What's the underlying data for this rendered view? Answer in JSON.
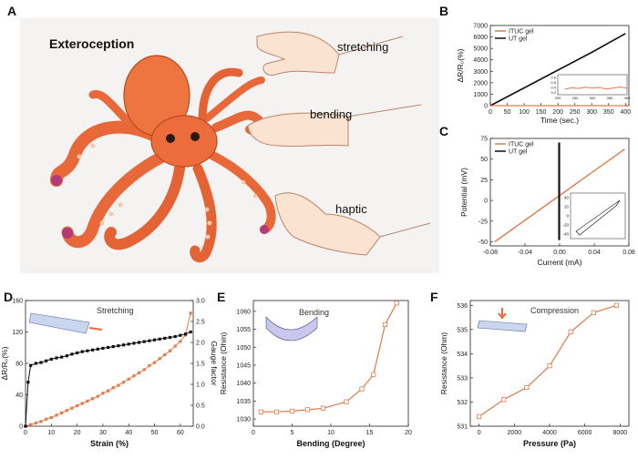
{
  "panels": {
    "A": {
      "label": "A",
      "title": "Exteroception",
      "words": [
        "stretching",
        "bending",
        "haptic"
      ]
    },
    "B": {
      "label": "B"
    },
    "C": {
      "label": "C"
    },
    "D": {
      "label": "D"
    },
    "E": {
      "label": "E"
    },
    "F": {
      "label": "F"
    }
  },
  "colors": {
    "orange": "#e07a4a",
    "black": "#111111",
    "skin": "#fbe3d2",
    "octopus": "#e8683a"
  },
  "chart_data": [
    {
      "id": "B",
      "type": "line",
      "xlabel": "Time (sec.)",
      "ylabel": "ΔR/R₀(%)",
      "xlim": [
        0,
        410
      ],
      "ylim": [
        0,
        7000
      ],
      "xticks": [
        "0",
        "50",
        "100",
        "150",
        "200",
        "250",
        "300",
        "350",
        "400"
      ],
      "yticks": [
        "0",
        "1000",
        "2000",
        "3000",
        "4000",
        "5000",
        "6000",
        "7000"
      ],
      "series": [
        {
          "name": "ITUC gel",
          "color": "#e07a4a",
          "x": [
            0,
            400
          ],
          "y": [
            0,
            0
          ]
        },
        {
          "name": "UT gel",
          "color": "#111111",
          "x": [
            0,
            100,
            200,
            300,
            400
          ],
          "y": [
            0,
            1550,
            3100,
            4650,
            6300
          ]
        }
      ],
      "inset": {
        "yticks": [
          "0.2",
          "0.4",
          "0.6",
          "0.8"
        ],
        "xticks": [
          "200",
          "250",
          "300",
          "350",
          "400"
        ],
        "x": [
          220,
          240,
          260,
          280,
          300,
          320,
          340,
          360,
          380,
          400
        ],
        "y": [
          0.32,
          0.38,
          0.35,
          0.4,
          0.36,
          0.39,
          0.33,
          0.37,
          0.41,
          0.36
        ]
      }
    },
    {
      "id": "C",
      "type": "line",
      "xlabel": "Current (mA)",
      "ylabel": "Potential (mV)",
      "xlim": [
        -0.08,
        0.08
      ],
      "ylim": [
        -55,
        75
      ],
      "xticks": [
        "-0.08",
        "-0.04",
        "0.00",
        "0.04",
        "0.08"
      ],
      "yticks": [
        "-50",
        "-25",
        "0",
        "25",
        "50",
        "75"
      ],
      "series": [
        {
          "name": "ITUC gel",
          "color": "#e07a4a",
          "x": [
            -0.075,
            0.075
          ],
          "y": [
            -50,
            62
          ]
        },
        {
          "name": "UT gel",
          "color": "#111111",
          "x": [
            -0.0005,
            -0.0005
          ],
          "y": [
            -48,
            70
          ]
        }
      ],
      "inset": {
        "yticks": [
          "40",
          "20",
          "0",
          "-20",
          "-40"
        ]
      }
    },
    {
      "id": "D",
      "type": "scatter",
      "title": "Stretching",
      "xlabel": "Strain (%)",
      "ylabel": "ΔR/R₀(%)",
      "y2label": "Gauge factor",
      "xlim": [
        0,
        65
      ],
      "ylim": [
        0,
        160
      ],
      "y2lim": [
        0,
        3.0
      ],
      "xticks": [
        "0",
        "10",
        "20",
        "30",
        "40",
        "50",
        "60"
      ],
      "yticks": [
        "0",
        "40",
        "80",
        "120",
        "160"
      ],
      "y2ticks": [
        "0.0",
        "0.5",
        "1.0",
        "1.5",
        "2.0",
        "2.5",
        "3.0"
      ],
      "series": [
        {
          "name": "ΔR/R₀",
          "color": "#e07a4a",
          "axis": "left",
          "x": [
            0,
            2,
            4,
            6,
            8,
            10,
            12,
            14,
            16,
            18,
            20,
            22,
            24,
            26,
            28,
            30,
            32,
            34,
            36,
            38,
            40,
            42,
            44,
            46,
            48,
            50,
            52,
            54,
            56,
            58,
            60,
            62,
            64
          ],
          "y": [
            0,
            2,
            4,
            6,
            9,
            11,
            14,
            17,
            20,
            23,
            26,
            29,
            32,
            35,
            38,
            42,
            45,
            49,
            52,
            56,
            60,
            64,
            68,
            72,
            77,
            81,
            86,
            91,
            96,
            102,
            108,
            116,
            144
          ]
        },
        {
          "name": "Gauge factor",
          "color": "#111111",
          "axis": "right",
          "x": [
            0,
            1,
            2,
            4,
            6,
            8,
            10,
            12,
            14,
            16,
            18,
            20,
            22,
            24,
            26,
            28,
            30,
            32,
            34,
            36,
            38,
            40,
            42,
            44,
            46,
            48,
            50,
            52,
            54,
            56,
            58,
            60,
            62,
            64
          ],
          "y": [
            0,
            1.05,
            1.45,
            1.5,
            1.52,
            1.56,
            1.6,
            1.63,
            1.65,
            1.68,
            1.72,
            1.75,
            1.78,
            1.8,
            1.82,
            1.84,
            1.86,
            1.88,
            1.9,
            1.92,
            1.94,
            1.96,
            1.98,
            2.0,
            2.02,
            2.04,
            2.06,
            2.08,
            2.1,
            2.12,
            2.14,
            2.17,
            2.2,
            2.25
          ]
        }
      ]
    },
    {
      "id": "E",
      "type": "line",
      "title": "Bending",
      "xlabel": "Bending (Degree)",
      "ylabel": "Resistance (Ohm)",
      "xlim": [
        0,
        20
      ],
      "ylim": [
        1028,
        1063
      ],
      "xticks": [
        "0",
        "5",
        "10",
        "15",
        "20"
      ],
      "yticks": [
        "1030",
        "1035",
        "1040",
        "1045",
        "1050",
        "1055",
        "1060"
      ],
      "series": [
        {
          "name": "Bending",
          "color": "#e07a4a",
          "x": [
            1,
            3,
            5,
            7,
            9,
            12,
            14,
            15.5,
            17,
            18.5
          ],
          "y": [
            1032,
            1032,
            1032.2,
            1032.6,
            1033,
            1034.8,
            1038.4,
            1042.4,
            1056.3,
            1062.3
          ]
        }
      ]
    },
    {
      "id": "F",
      "type": "line",
      "title": "Compression",
      "xlabel": "Pressure (Pa)",
      "ylabel": "Resistance (Ohm)",
      "xlim": [
        -500,
        8500
      ],
      "ylim": [
        531,
        536.2
      ],
      "xticks": [
        "0",
        "2000",
        "4000",
        "6000",
        "8000"
      ],
      "yticks": [
        "531",
        "532",
        "533",
        "534",
        "535",
        "536"
      ],
      "series": [
        {
          "name": "Compression",
          "color": "#e07a4a",
          "x": [
            0,
            1400,
            2700,
            4000,
            5200,
            6500,
            7800
          ],
          "y": [
            531.4,
            532.1,
            532.6,
            533.5,
            534.9,
            535.7,
            536.0
          ]
        }
      ]
    }
  ]
}
